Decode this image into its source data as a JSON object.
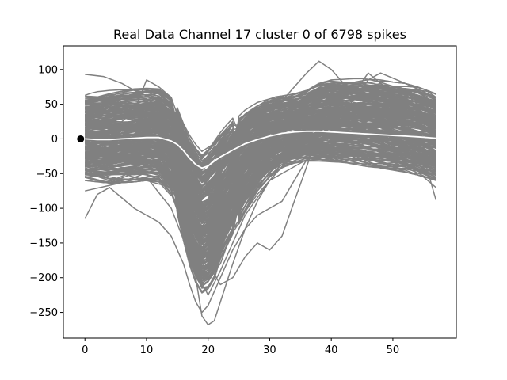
{
  "chart_data": {
    "type": "line",
    "title": "Real Data Channel 17 cluster 0 of 6798 spikes",
    "xlabel": "",
    "ylabel": "",
    "xlim": [
      -3.5,
      60.3
    ],
    "ylim": [
      -287,
      134
    ],
    "grid": false,
    "x_ticks": [
      0,
      10,
      20,
      30,
      40,
      50
    ],
    "x_tick_labels": [
      "0",
      "10",
      "20",
      "30",
      "40",
      "50"
    ],
    "y_ticks": [
      100,
      50,
      0,
      -50,
      -100,
      -150,
      -200,
      -250
    ],
    "y_tick_labels": [
      "100",
      "50",
      "0",
      "−50",
      "−100",
      "−150",
      "−200",
      "−250"
    ],
    "trace_color": "#808080",
    "mean_color": "#ffffff",
    "marker_color": "#000000",
    "n_samples": 58,
    "num_spikes": 6798,
    "mean_waveform": {
      "x": [
        0,
        2,
        4,
        6,
        8,
        10,
        12,
        14,
        15,
        16,
        17,
        18,
        19,
        20,
        21,
        22,
        24,
        26,
        28,
        30,
        32,
        34,
        36,
        38,
        40,
        42,
        44,
        46,
        48,
        50,
        52,
        54,
        57
      ],
      "y": [
        0,
        -1,
        -1,
        0,
        1,
        2,
        2,
        -3,
        -8,
        -17,
        -28,
        -37,
        -42,
        -39,
        -32,
        -26,
        -16,
        -7,
        -1,
        4,
        8,
        10,
        11,
        11,
        10,
        9,
        8,
        7,
        6,
        5,
        4,
        3,
        1
      ]
    },
    "trace_envelope": {
      "x": [
        0,
        2,
        4,
        6,
        8,
        10,
        12,
        14,
        15,
        16,
        17,
        18,
        19,
        20,
        21,
        22,
        24,
        26,
        28,
        30,
        32,
        34,
        36,
        38,
        40,
        42,
        44,
        46,
        48,
        50,
        52,
        54,
        57
      ],
      "upper": [
        65,
        68,
        70,
        71,
        72,
        73,
        72,
        60,
        45,
        22,
        5,
        -8,
        -18,
        -10,
        0,
        10,
        30,
        45,
        55,
        60,
        62,
        65,
        70,
        80,
        85,
        86,
        87,
        87,
        85,
        82,
        80,
        75,
        65
      ],
      "lower": [
        -60,
        -62,
        -64,
        -63,
        -62,
        -60,
        -62,
        -82,
        -110,
        -150,
        -185,
        -210,
        -225,
        -220,
        -205,
        -175,
        -140,
        -105,
        -75,
        -55,
        -42,
        -35,
        -32,
        -32,
        -33,
        -35,
        -37,
        -40,
        -42,
        -45,
        -48,
        -52,
        -60
      ]
    },
    "outlier_traces": [
      {
        "x": [
          0,
          3,
          6,
          8,
          10,
          12,
          14,
          16,
          17,
          18,
          19,
          20,
          21,
          22,
          24,
          26,
          28,
          30,
          34,
          38,
          44,
          50,
          57
        ],
        "y": [
          93,
          90,
          80,
          70,
          62,
          55,
          30,
          -60,
          -130,
          -200,
          -255,
          -268,
          -262,
          -235,
          -180,
          -130,
          -90,
          -60,
          -20,
          0,
          10,
          20,
          20
        ]
      },
      {
        "x": [
          0,
          2,
          4,
          6,
          8,
          10,
          12,
          14,
          16,
          17,
          18,
          19,
          20,
          22,
          24,
          26,
          28,
          30,
          32,
          34,
          36,
          40,
          46,
          52,
          57
        ],
        "y": [
          -115,
          -80,
          -70,
          -85,
          -100,
          -110,
          -120,
          -140,
          -180,
          -210,
          -235,
          -250,
          -240,
          -200,
          -160,
          -130,
          -110,
          -100,
          -90,
          -60,
          -30,
          20,
          40,
          45,
          40
        ]
      },
      {
        "x": [
          0,
          4,
          8,
          12,
          14,
          16,
          18,
          20,
          22,
          24,
          26,
          28,
          30,
          32,
          34,
          36,
          38,
          40,
          44,
          48,
          52,
          57
        ],
        "y": [
          0,
          5,
          10,
          20,
          10,
          -30,
          -110,
          -180,
          -210,
          -200,
          -170,
          -150,
          -160,
          -140,
          -90,
          -40,
          10,
          50,
          70,
          80,
          60,
          20
        ]
      },
      {
        "x": [
          0,
          4,
          8,
          10,
          12,
          14,
          16,
          18,
          20,
          22,
          24,
          26,
          28,
          30,
          32,
          34,
          36,
          38,
          40,
          42,
          44,
          46,
          48,
          50,
          52,
          54,
          57
        ],
        "y": [
          20,
          10,
          40,
          85,
          75,
          60,
          10,
          -60,
          -130,
          -120,
          -80,
          -30,
          10,
          35,
          55,
          75,
          95,
          112,
          100,
          80,
          70,
          95,
          80,
          70,
          65,
          50,
          30
        ]
      },
      {
        "x": [
          0,
          6,
          10,
          14,
          16,
          18,
          20,
          22,
          24,
          28,
          32,
          36,
          40,
          44,
          46,
          48,
          52,
          57
        ],
        "y": [
          -40,
          -50,
          -60,
          -70,
          -110,
          -165,
          -200,
          -180,
          -130,
          -80,
          -40,
          -10,
          20,
          60,
          85,
          95,
          80,
          60
        ]
      },
      {
        "x": [
          0,
          4,
          8,
          12,
          16,
          18,
          20,
          22,
          26,
          30,
          34,
          38,
          42,
          46,
          50,
          54,
          57
        ],
        "y": [
          40,
          55,
          65,
          70,
          20,
          -40,
          -70,
          -60,
          -20,
          10,
          30,
          45,
          60,
          55,
          40,
          5,
          -88
        ]
      },
      {
        "x": [
          0,
          5,
          10,
          14,
          18,
          20,
          22,
          26,
          30,
          36,
          40,
          44,
          48,
          52,
          55,
          57
        ],
        "y": [
          -75,
          -65,
          -55,
          -100,
          -190,
          -225,
          -190,
          -110,
          -60,
          -30,
          -20,
          -25,
          -40,
          -45,
          -55,
          -70
        ]
      }
    ],
    "marker_point": {
      "x": -0.7,
      "y": 0
    }
  }
}
